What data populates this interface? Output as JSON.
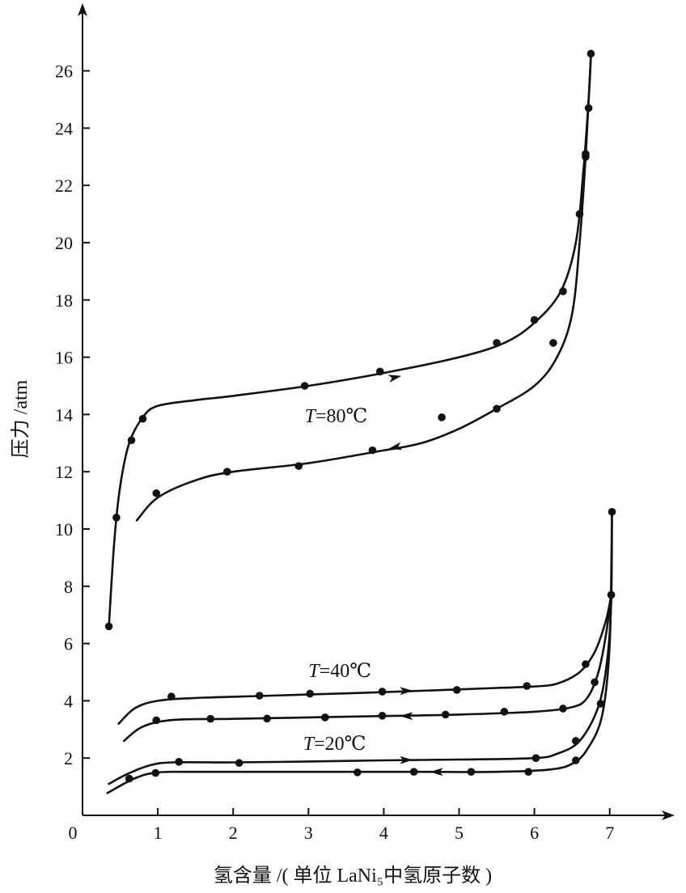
{
  "chart_data": {
    "type": "line",
    "xlabel": "氢含量 /( 单位 LaNi₅中氢原子数 )",
    "ylabel": "压力 /atm",
    "xlim": [
      0,
      7.8
    ],
    "ylim": [
      0,
      27.5
    ],
    "x_ticks": [
      "0",
      "1",
      "2",
      "3",
      "4",
      "5",
      "6",
      "7"
    ],
    "y_ticks": [
      "2",
      "4",
      "6",
      "8",
      "10",
      "12",
      "14",
      "16",
      "18",
      "20",
      "22",
      "24",
      "26"
    ],
    "grid": false,
    "series": [
      {
        "group": "T=80℃",
        "direction": "absorption",
        "curve": [
          [
            0.35,
            6.6
          ],
          [
            0.42,
            9.5
          ],
          [
            0.5,
            11.5
          ],
          [
            0.62,
            13.0
          ],
          [
            0.8,
            13.9
          ],
          [
            1.0,
            14.3
          ],
          [
            1.5,
            14.5
          ],
          [
            2.0,
            14.65
          ],
          [
            3.0,
            15.0
          ],
          [
            4.0,
            15.45
          ],
          [
            5.0,
            16.0
          ],
          [
            5.6,
            16.5
          ],
          [
            6.0,
            17.2
          ],
          [
            6.35,
            18.3
          ],
          [
            6.55,
            20.0
          ],
          [
            6.65,
            22.5
          ],
          [
            6.72,
            25.0
          ],
          [
            6.75,
            26.5
          ]
        ],
        "points": [
          [
            0.35,
            6.6
          ],
          [
            0.45,
            10.4
          ],
          [
            0.65,
            13.1
          ],
          [
            0.8,
            13.85
          ],
          [
            2.95,
            15.0
          ],
          [
            3.95,
            15.5
          ],
          [
            5.5,
            16.5
          ],
          [
            6.0,
            17.3
          ],
          [
            6.38,
            18.3
          ],
          [
            6.6,
            21.0
          ],
          [
            6.68,
            23.1
          ],
          [
            6.72,
            24.7
          ],
          [
            6.75,
            26.6
          ]
        ]
      },
      {
        "group": "T=80℃",
        "direction": "desorption",
        "curve": [
          [
            6.75,
            26.5
          ],
          [
            6.68,
            23.0
          ],
          [
            6.6,
            20.0
          ],
          [
            6.5,
            17.5
          ],
          [
            6.3,
            16.0
          ],
          [
            6.0,
            15.0
          ],
          [
            5.5,
            14.2
          ],
          [
            5.0,
            13.5
          ],
          [
            4.5,
            13.0
          ],
          [
            3.9,
            12.7
          ],
          [
            3.0,
            12.3
          ],
          [
            2.0,
            12.0
          ],
          [
            1.5,
            11.7
          ],
          [
            1.0,
            11.1
          ],
          [
            0.72,
            10.3
          ]
        ],
        "points": [
          [
            0.98,
            11.25
          ],
          [
            1.92,
            12.0
          ],
          [
            2.87,
            12.2
          ],
          [
            3.85,
            12.75
          ],
          [
            4.77,
            13.9
          ],
          [
            5.5,
            14.2
          ],
          [
            6.25,
            16.5
          ],
          [
            6.68,
            23.0
          ]
        ]
      },
      {
        "group": "T=40℃",
        "direction": "absorption",
        "curve": [
          [
            0.48,
            3.2
          ],
          [
            0.7,
            3.75
          ],
          [
            1.0,
            4.0
          ],
          [
            1.5,
            4.1
          ],
          [
            2.5,
            4.18
          ],
          [
            3.5,
            4.26
          ],
          [
            4.5,
            4.35
          ],
          [
            5.5,
            4.45
          ],
          [
            6.0,
            4.5
          ],
          [
            6.3,
            4.6
          ],
          [
            6.6,
            5.0
          ],
          [
            6.8,
            5.7
          ],
          [
            6.95,
            6.8
          ],
          [
            7.02,
            7.7
          ]
        ],
        "points": [
          [
            1.18,
            4.15
          ],
          [
            2.35,
            4.18
          ],
          [
            3.02,
            4.25
          ],
          [
            3.98,
            4.32
          ],
          [
            4.97,
            4.38
          ],
          [
            5.9,
            4.52
          ],
          [
            6.68,
            5.28
          ],
          [
            7.02,
            7.7
          ]
        ]
      },
      {
        "group": "T=40℃",
        "direction": "desorption",
        "curve": [
          [
            7.02,
            7.7
          ],
          [
            6.95,
            6.3
          ],
          [
            6.85,
            5.0
          ],
          [
            6.7,
            4.1
          ],
          [
            6.5,
            3.78
          ],
          [
            6.0,
            3.62
          ],
          [
            5.0,
            3.52
          ],
          [
            4.0,
            3.47
          ],
          [
            3.0,
            3.42
          ],
          [
            2.0,
            3.37
          ],
          [
            1.2,
            3.33
          ],
          [
            0.8,
            3.1
          ],
          [
            0.55,
            2.6
          ]
        ],
        "points": [
          [
            0.98,
            3.32
          ],
          [
            1.7,
            3.37
          ],
          [
            2.45,
            3.38
          ],
          [
            3.22,
            3.42
          ],
          [
            3.98,
            3.48
          ],
          [
            4.82,
            3.52
          ],
          [
            5.6,
            3.62
          ],
          [
            6.38,
            3.73
          ],
          [
            6.8,
            4.65
          ],
          [
            7.02,
            7.7
          ]
        ]
      },
      {
        "group": "T=20℃",
        "direction": "absorption",
        "curve": [
          [
            0.35,
            1.1
          ],
          [
            0.6,
            1.45
          ],
          [
            0.9,
            1.75
          ],
          [
            1.2,
            1.85
          ],
          [
            2.0,
            1.85
          ],
          [
            3.0,
            1.88
          ],
          [
            4.0,
            1.92
          ],
          [
            5.0,
            1.95
          ],
          [
            6.0,
            2.0
          ],
          [
            6.3,
            2.15
          ],
          [
            6.6,
            2.6
          ],
          [
            6.85,
            3.8
          ],
          [
            6.97,
            5.5
          ],
          [
            7.02,
            7.5
          ],
          [
            7.03,
            10.6
          ]
        ],
        "points": [
          [
            1.28,
            1.87
          ],
          [
            2.08,
            1.83
          ],
          [
            6.02,
            2.0
          ],
          [
            6.55,
            2.6
          ],
          [
            6.88,
            3.9
          ],
          [
            7.03,
            10.6
          ]
        ]
      },
      {
        "group": "T=20℃",
        "direction": "desorption",
        "curve": [
          [
            7.03,
            10.6
          ],
          [
            7.0,
            6.0
          ],
          [
            6.9,
            3.5
          ],
          [
            6.7,
            2.3
          ],
          [
            6.5,
            1.8
          ],
          [
            6.2,
            1.6
          ],
          [
            5.5,
            1.52
          ],
          [
            4.5,
            1.52
          ],
          [
            3.5,
            1.52
          ],
          [
            2.5,
            1.52
          ],
          [
            1.5,
            1.52
          ],
          [
            1.0,
            1.5
          ],
          [
            0.7,
            1.3
          ],
          [
            0.33,
            0.78
          ]
        ],
        "points": [
          [
            0.62,
            1.28
          ],
          [
            0.97,
            1.48
          ],
          [
            3.65,
            1.5
          ],
          [
            4.4,
            1.52
          ],
          [
            5.16,
            1.52
          ],
          [
            5.92,
            1.52
          ],
          [
            6.55,
            1.92
          ]
        ]
      }
    ],
    "annotations": [
      {
        "text_parts": [
          "T",
          "=80℃"
        ],
        "x": 2.95,
        "y": 13.95
      },
      {
        "text_parts": [
          "T",
          "=40℃"
        ],
        "x": 3.0,
        "y": 5.05
      },
      {
        "text_parts": [
          "T",
          "=20℃"
        ],
        "x": 2.93,
        "y": 2.52
      }
    ],
    "arrows": [
      {
        "at": [
          4.15,
          15.3
        ],
        "dir": [
          1,
          0.22
        ]
      },
      {
        "at": [
          4.15,
          12.85
        ],
        "dir": [
          -1,
          -0.22
        ]
      },
      {
        "at": [
          4.3,
          4.35
        ],
        "dir": [
          1,
          0.02
        ]
      },
      {
        "at": [
          4.3,
          3.47
        ],
        "dir": [
          -1,
          0
        ]
      },
      {
        "at": [
          4.3,
          1.93
        ],
        "dir": [
          1,
          0.02
        ]
      },
      {
        "at": [
          4.7,
          1.52
        ],
        "dir": [
          -1,
          0
        ]
      }
    ]
  }
}
